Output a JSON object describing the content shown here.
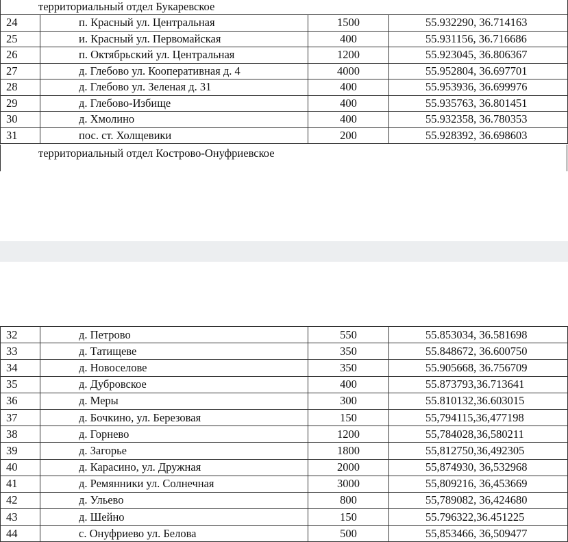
{
  "sections": [
    {
      "title": "территориальный отдел Букаревское",
      "rows": [
        {
          "no": "24",
          "name": "п. Красный ул. Центральная",
          "value": "1500",
          "coords": "55.932290, 36.714163"
        },
        {
          "no": "25",
          "name": "и. Красный ул. Первомайская",
          "value": "400",
          "coords": "55.931156, 36.716686"
        },
        {
          "no": "26",
          "name": "п. Октябрьский ул. Центральная",
          "value": "1200",
          "coords": "55.923045, 36.806367"
        },
        {
          "no": "27",
          "name": "д. Глебово ул. Кооперативная д. 4",
          "value": "4000",
          "coords": "55.952804, 36.697701"
        },
        {
          "no": "28",
          "name": "д. Глебово ул. Зеленая д. 31",
          "value": "400",
          "coords": "55.953936, 36.699976"
        },
        {
          "no": "29",
          "name": "д. Глебово-Избище",
          "value": "400",
          "coords": "55.935763, 36.801451"
        },
        {
          "no": "30",
          "name": "д. Хмолино",
          "value": "400",
          "coords": "55.932358, 36.780353"
        },
        {
          "no": "31",
          "name": "пос. ст. Холщевики",
          "value": "200",
          "coords": "55.928392, 36.698603"
        }
      ]
    },
    {
      "title": "территориальный отдел Кострово-Онуфриевское",
      "rows": [
        {
          "no": "32",
          "name": "д. Петрово",
          "value": "550",
          "coords": "55.853034, 36.581698"
        },
        {
          "no": "33",
          "name": "д. Татищеве",
          "value": "350",
          "coords": "55.848672, 36.600750"
        },
        {
          "no": "34",
          "name": "д. Новоселове",
          "value": "350",
          "coords": "55.905668, 36.756709"
        },
        {
          "no": "35",
          "name": "д. Дубровское",
          "value": "400",
          "coords": "55.873793,36.713641"
        },
        {
          "no": "36",
          "name": "д. Меры",
          "value": "300",
          "coords": "55.810132,36.603015"
        },
        {
          "no": "37",
          "name": "д. Бочкино, ул. Березовая",
          "value": "150",
          "coords": "55,794115,36,477198"
        },
        {
          "no": "38",
          "name": "д. Горнево",
          "value": "1200",
          "coords": "55,784028,36,580211"
        },
        {
          "no": "39",
          "name": "д. Загорье",
          "value": "1800",
          "coords": "55,812750,36,492305"
        },
        {
          "no": "40",
          "name": "д. Карасино, ул. Дружная",
          "value": "2000",
          "coords": "55,874930, 36,532968"
        },
        {
          "no": "41",
          "name": "д. Ремянники ул. Солнечная",
          "value": "3000",
          "coords": "55,809216, 36,453669"
        },
        {
          "no": "42",
          "name": "д. Ульево",
          "value": "800",
          "coords": "55,789082, 36,424680"
        },
        {
          "no": "43",
          "name": "д. Шейно",
          "value": "150",
          "coords": "55.796322,36.451225"
        },
        {
          "no": "44",
          "name": "с. Онуфриево ул. Белова",
          "value": "500",
          "coords": "55,853466, 36,509477"
        }
      ]
    }
  ]
}
